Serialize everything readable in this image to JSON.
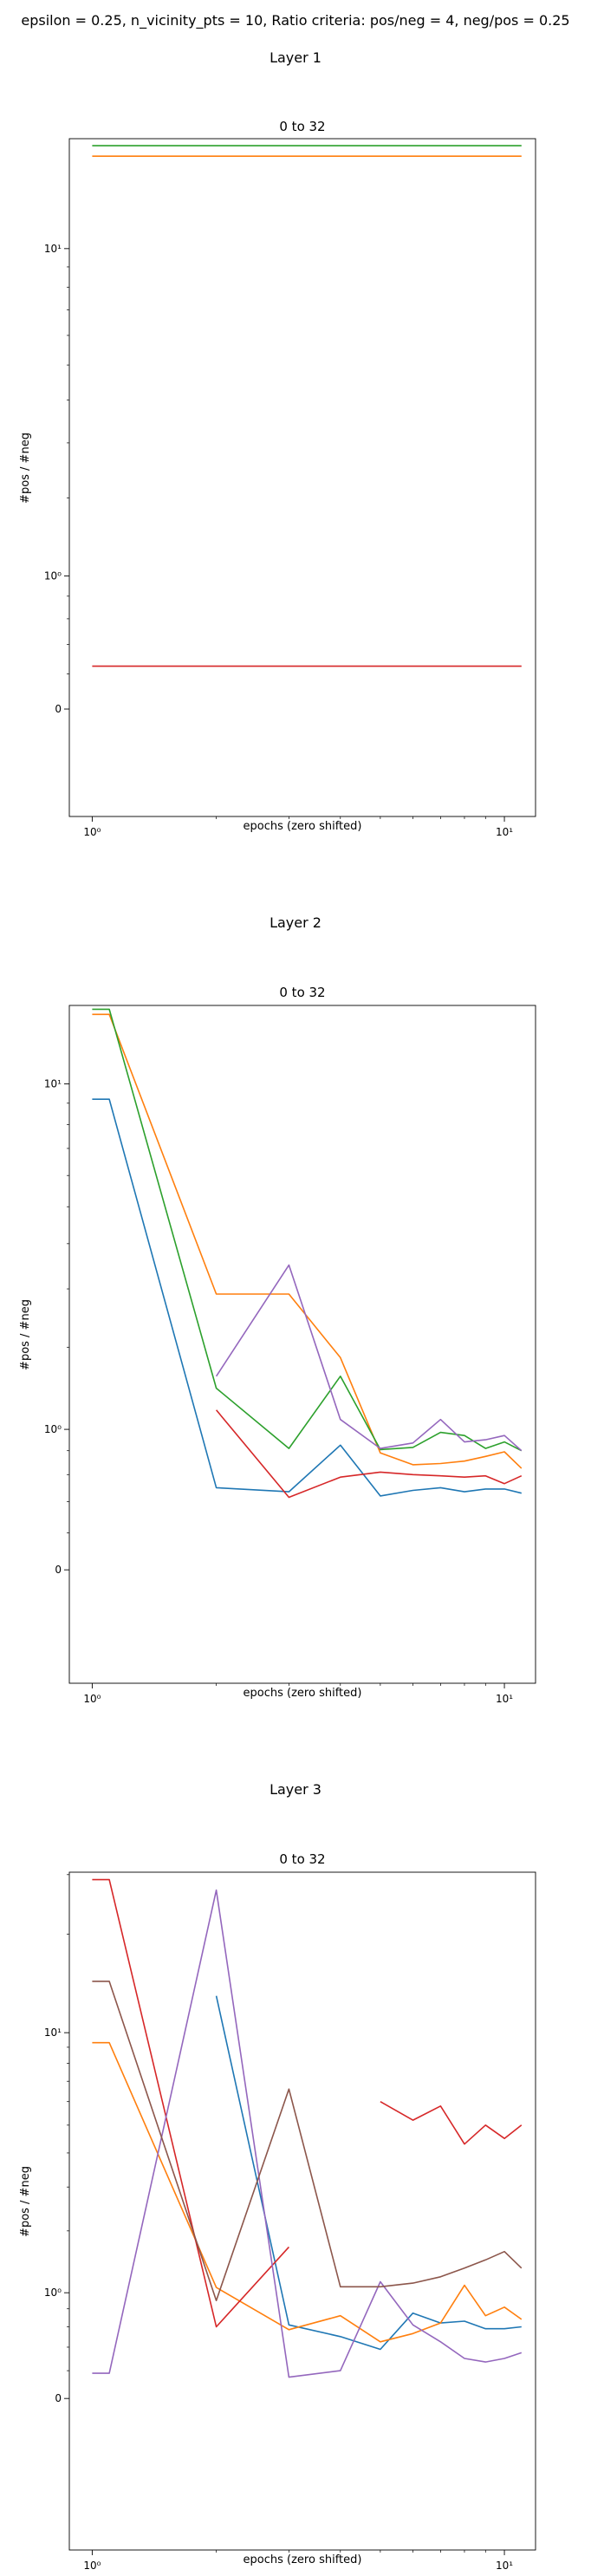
{
  "suptitle": "epsilon = 0.25, n_vicinity_pts = 10, Ratio criteria: pos/neg = 4, neg/pos = 0.25",
  "colors": [
    "#1f77b4",
    "#ff7f0e",
    "#2ca02c",
    "#d62728",
    "#9467bd",
    "#8c564b"
  ],
  "chart_data": [
    {
      "type": "line",
      "layer_title": "Layer 1",
      "title": "0 to 32",
      "xlabel": "epochs (zero shifted)",
      "ylabel": "#pos / #neg",
      "xscale": "log",
      "yscale": "symlog",
      "xlim": [
        0.88,
        11.9
      ],
      "ylim": [
        -0.75,
        18.5
      ],
      "grid": false,
      "xtick_labels": [
        {
          "value": 1,
          "label": "10⁰"
        },
        {
          "value": 10,
          "label": "10¹"
        }
      ],
      "ytick_labels": [
        {
          "value": 0,
          "label": "0"
        },
        {
          "value": 1,
          "label": "10⁰"
        },
        {
          "value": 10,
          "label": "10¹"
        }
      ],
      "series": [
        {
          "color_index": 2,
          "x": [
            1,
            2,
            3,
            4,
            5,
            6,
            7,
            8,
            9,
            10,
            11
          ],
          "values": [
            17.8,
            17.8,
            17.8,
            17.8,
            17.8,
            17.8,
            17.8,
            17.8,
            17.8,
            17.8,
            17.8
          ]
        },
        {
          "color_index": 1,
          "x": [
            1,
            2,
            3,
            4,
            5,
            6,
            7,
            8,
            9,
            10,
            11
          ],
          "values": [
            16.8,
            16.8,
            16.8,
            16.8,
            16.8,
            16.8,
            16.8,
            16.8,
            16.8,
            16.8,
            16.8
          ]
        },
        {
          "color_index": 3,
          "x": [
            1,
            2,
            3,
            4,
            5,
            6,
            7,
            8,
            9,
            10,
            11
          ],
          "values": [
            0.25,
            0.25,
            0.25,
            0.25,
            0.25,
            0.25,
            0.25,
            0.25,
            0.25,
            0.25,
            0.25
          ]
        }
      ]
    },
    {
      "type": "line",
      "layer_title": "Layer 2",
      "title": "0 to 32",
      "xlabel": "epochs (zero shifted)",
      "ylabel": "#pos / #neg",
      "xscale": "log",
      "yscale": "symlog",
      "xlim": [
        0.88,
        11.9
      ],
      "ylim": [
        -0.75,
        15.2
      ],
      "grid": false,
      "xtick_labels": [
        {
          "value": 1,
          "label": "10⁰"
        },
        {
          "value": 10,
          "label": "10¹"
        }
      ],
      "ytick_labels": [
        {
          "value": 0,
          "label": "0"
        },
        {
          "value": 1,
          "label": "10⁰"
        },
        {
          "value": 10,
          "label": "10¹"
        }
      ],
      "series": [
        {
          "color_index": 0,
          "x": [
            1,
            1.1,
            2,
            3,
            4,
            5,
            6,
            7,
            8,
            9,
            10,
            11
          ],
          "values": [
            9.2,
            9.2,
            0.5,
            0.47,
            0.85,
            0.44,
            0.48,
            0.5,
            0.47,
            0.49,
            0.49,
            0.46
          ]
        },
        {
          "color_index": 1,
          "x": [
            1,
            1.1,
            2,
            3,
            4,
            5,
            6,
            7,
            8,
            9,
            10,
            11
          ],
          "values": [
            14.5,
            14.5,
            2.9,
            2.9,
            1.85,
            0.78,
            0.68,
            0.69,
            0.71,
            0.75,
            0.79,
            0.65
          ]
        },
        {
          "color_index": 2,
          "x": [
            1,
            1.1,
            2,
            3,
            4,
            5,
            6,
            7,
            8,
            9,
            10,
            11
          ],
          "values": [
            14.9,
            14.9,
            1.45,
            0.82,
            1.6,
            0.81,
            0.83,
            0.97,
            0.94,
            0.82,
            0.88,
            0.8
          ]
        },
        {
          "color_index": 3,
          "x": [
            2,
            3,
            4,
            5,
            6,
            7,
            8,
            9,
            10,
            11
          ],
          "values": [
            1.2,
            0.43,
            0.58,
            0.62,
            0.6,
            0.59,
            0.58,
            0.59,
            0.53,
            0.59
          ]
        },
        {
          "color_index": 4,
          "x": [
            2,
            3,
            4,
            5,
            6,
            7,
            8,
            9,
            10,
            11
          ],
          "values": [
            1.6,
            3.5,
            1.1,
            0.82,
            0.87,
            1.1,
            0.88,
            0.9,
            0.94,
            0.8
          ]
        }
      ]
    },
    {
      "type": "line",
      "layer_title": "Layer 3",
      "title": "0 to 32",
      "xlabel": "epochs (zero shifted)",
      "ylabel": "#pos / #neg",
      "xscale": "log",
      "yscale": "symlog",
      "xlim": [
        0.88,
        11.9
      ],
      "ylim": [
        -1.7,
        30.5
      ],
      "grid": false,
      "xtick_labels": [
        {
          "value": 1,
          "label": "10⁰"
        },
        {
          "value": 10,
          "label": "10¹"
        }
      ],
      "ytick_labels": [
        {
          "value": 0,
          "label": "0"
        },
        {
          "value": 1,
          "label": "10⁰"
        },
        {
          "value": 10,
          "label": "10¹"
        }
      ],
      "series": [
        {
          "color_index": 0,
          "x": [
            2,
            3,
            4,
            5,
            6,
            7,
            8,
            9,
            10,
            11
          ],
          "values": [
            13.0,
            0.62,
            0.5,
            0.38,
            0.75,
            0.64,
            0.66,
            0.58,
            0.58,
            0.6
          ]
        },
        {
          "color_index": 1,
          "x": [
            1,
            1.1,
            2,
            3,
            4,
            5,
            6,
            7,
            8,
            9,
            10,
            11
          ],
          "values": [
            9.3,
            9.3,
            1.07,
            0.57,
            0.72,
            0.45,
            0.53,
            0.64,
            1.1,
            0.72,
            0.82,
            0.68
          ]
        },
        {
          "color_index": 3,
          "x": [
            1,
            1.1,
            2,
            3
          ],
          "values": [
            29.0,
            29.0,
            0.6,
            1.7
          ]
        },
        {
          "color_index": 3,
          "x": [
            5,
            6,
            7,
            8,
            9,
            10,
            11
          ],
          "values": [
            6.0,
            5.2,
            5.8,
            4.3,
            5.0,
            4.5,
            5.0
          ]
        },
        {
          "color_index": 4,
          "x": [
            1,
            1.1,
            2,
            3,
            4,
            5,
            6,
            7,
            8,
            9,
            10,
            11
          ],
          "values": [
            0.18,
            0.18,
            27.0,
            0.15,
            0.2,
            1.15,
            0.62,
            0.45,
            0.3,
            0.27,
            0.3,
            0.35
          ]
        },
        {
          "color_index": 5,
          "x": [
            1,
            1.1,
            2,
            3,
            4,
            5,
            6,
            7,
            8,
            9,
            10,
            11
          ],
          "values": [
            14.4,
            14.4,
            0.9,
            6.6,
            1.08,
            1.08,
            1.13,
            1.22,
            1.35,
            1.48,
            1.62,
            1.35
          ]
        }
      ]
    }
  ]
}
